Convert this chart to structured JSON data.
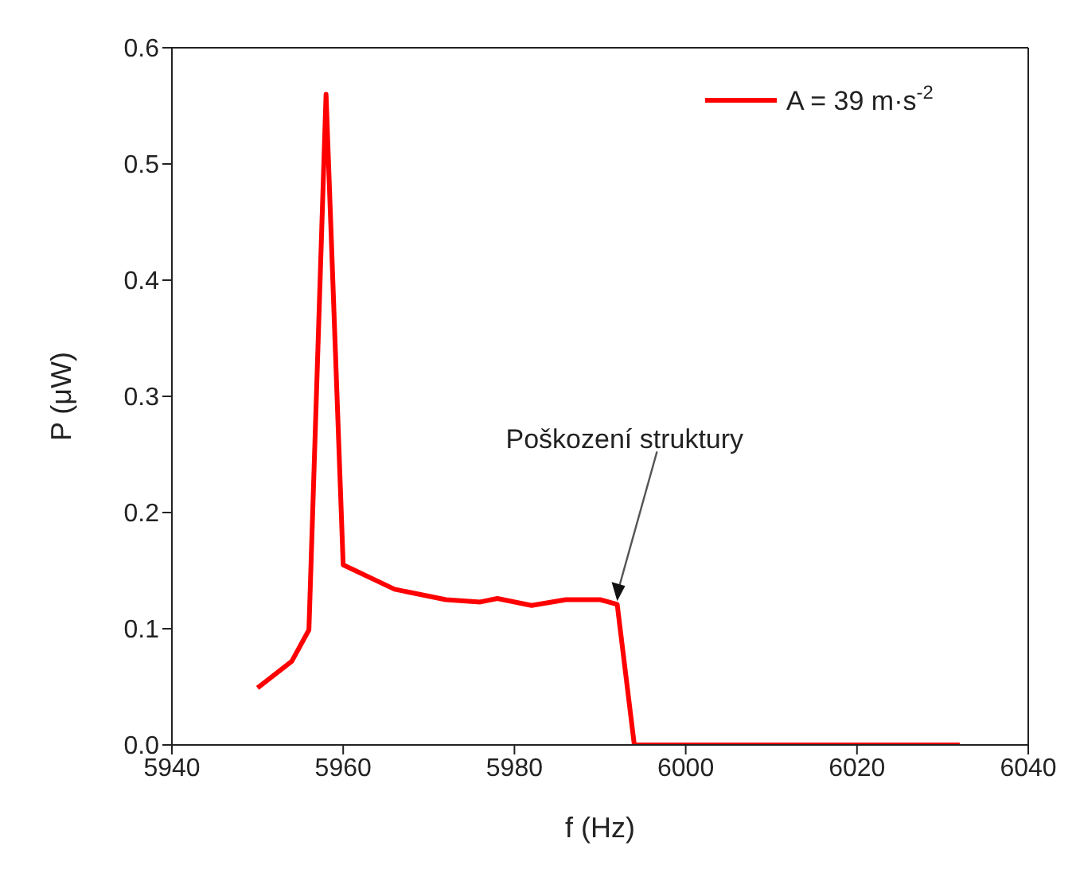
{
  "chart_data": {
    "type": "line",
    "xlabel": "f (Hz)",
    "ylabel": "P (μW)",
    "x": [
      5950,
      5954,
      5956,
      5958,
      5960,
      5966,
      5972,
      5976,
      5978,
      5982,
      5986,
      5990,
      5992,
      5994,
      6032
    ],
    "series": [
      {
        "name": "A = 39 m·s$^{-2}$",
        "color": "#ff0000",
        "values": [
          0.049,
          0.072,
          0.099,
          0.56,
          0.155,
          0.134,
          0.125,
          0.123,
          0.126,
          0.12,
          0.125,
          0.125,
          0.121,
          0,
          0
        ]
      }
    ],
    "xlim": [
      5940,
      6040
    ],
    "xticks": [
      5940,
      5960,
      5980,
      6000,
      6020,
      6040
    ],
    "ylim": [
      0,
      0.6
    ],
    "yticks": [
      {
        "value": 0,
        "label": "0.0"
      },
      0.1,
      0.2,
      0.3,
      0.4,
      0.5,
      0.6
    ],
    "grid": false,
    "legend": "top right",
    "marker": "none",
    "line_style": "solid",
    "annotations": [
      "Poškození struktury"
    ]
  }
}
